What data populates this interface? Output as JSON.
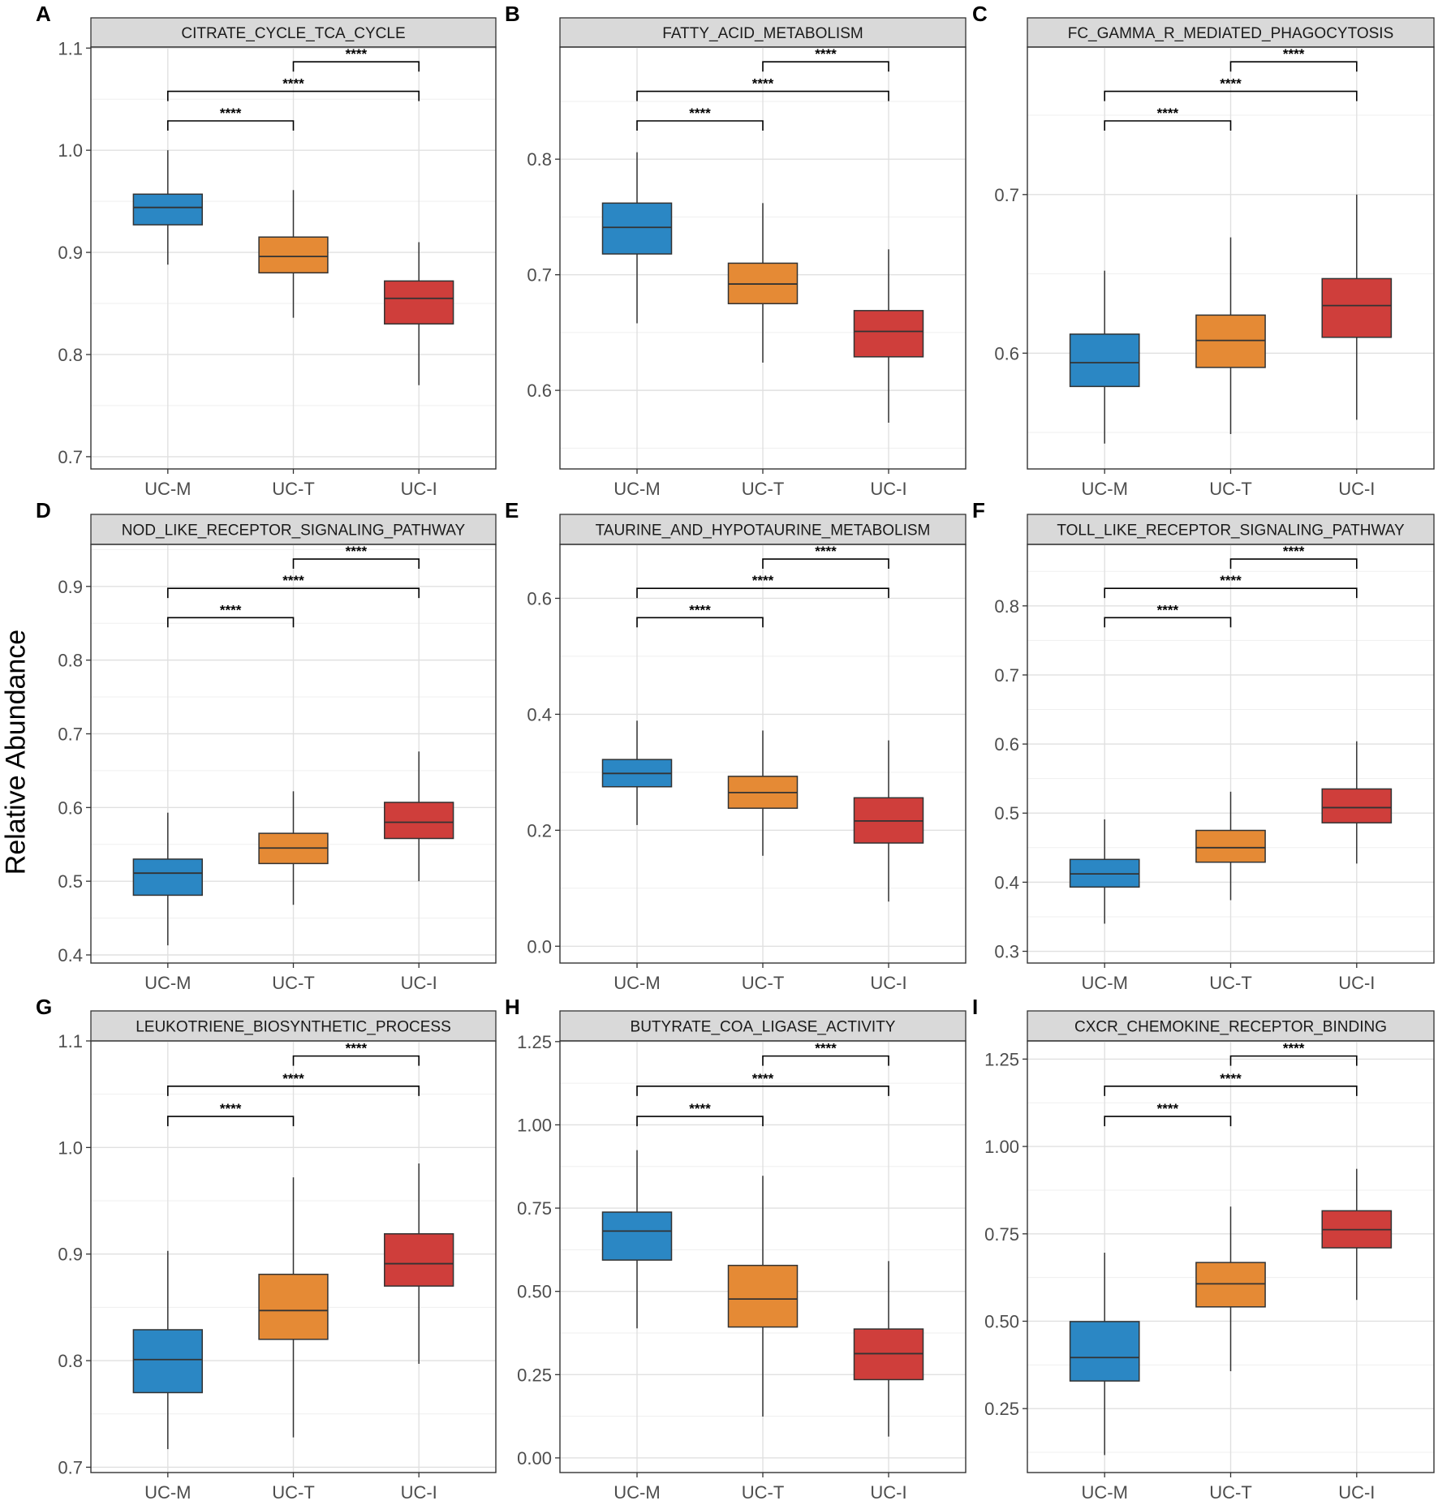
{
  "figure": {
    "y_axis_label": "Relative Abundance",
    "groups": [
      "UC-M",
      "UC-T",
      "UC-I"
    ],
    "group_colors": {
      "UC-M": "#2b87c4",
      "UC-T": "#e58a35",
      "UC-I": "#cf3e3b"
    },
    "significance_label": "****"
  },
  "chart_data": [
    {
      "letter": "A",
      "type": "box",
      "title": "CITRATE_CYCLE_TCA_CYCLE",
      "categories": [
        "UC-M",
        "UC-T",
        "UC-I"
      ],
      "ylim": [
        0.688,
        1.101
      ],
      "yticks": [
        0.7,
        0.8,
        0.9,
        1.0,
        1.1
      ],
      "tick_decimals": 1,
      "boxes": [
        {
          "group": "UC-M",
          "min": 0.888,
          "q1": 0.927,
          "median": 0.944,
          "q3": 0.957,
          "max": 1.0
        },
        {
          "group": "UC-T",
          "min": 0.836,
          "q1": 0.88,
          "median": 0.896,
          "q3": 0.915,
          "max": 0.961
        },
        {
          "group": "UC-I",
          "min": 0.77,
          "q1": 0.83,
          "median": 0.855,
          "q3": 0.872,
          "max": 0.91
        }
      ],
      "comparisons": [
        {
          "from": "UC-T",
          "to": "UC-I",
          "label": "****"
        },
        {
          "from": "UC-M",
          "to": "UC-I",
          "label": "****"
        },
        {
          "from": "UC-M",
          "to": "UC-T",
          "label": "****"
        }
      ]
    },
    {
      "letter": "B",
      "type": "box",
      "title": "FATTY_ACID_METABOLISM",
      "categories": [
        "UC-M",
        "UC-T",
        "UC-I"
      ],
      "ylim": [
        0.532,
        0.897
      ],
      "yticks": [
        0.6,
        0.7,
        0.8
      ],
      "tick_decimals": 1,
      "boxes": [
        {
          "group": "UC-M",
          "min": 0.658,
          "q1": 0.718,
          "median": 0.741,
          "q3": 0.762,
          "max": 0.806
        },
        {
          "group": "UC-T",
          "min": 0.624,
          "q1": 0.675,
          "median": 0.692,
          "q3": 0.71,
          "max": 0.762
        },
        {
          "group": "UC-I",
          "min": 0.572,
          "q1": 0.629,
          "median": 0.651,
          "q3": 0.669,
          "max": 0.722
        }
      ],
      "comparisons": [
        {
          "from": "UC-T",
          "to": "UC-I",
          "label": "****"
        },
        {
          "from": "UC-M",
          "to": "UC-I",
          "label": "****"
        },
        {
          "from": "UC-M",
          "to": "UC-T",
          "label": "****"
        }
      ]
    },
    {
      "letter": "C",
      "type": "box",
      "title": "FC_GAMMA_R_MEDIATED_PHAGOCYTOSIS",
      "categories": [
        "UC-M",
        "UC-T",
        "UC-I"
      ],
      "ylim": [
        0.527,
        0.793
      ],
      "yticks": [
        0.6,
        0.7
      ],
      "tick_decimals": 1,
      "boxes": [
        {
          "group": "UC-M",
          "min": 0.543,
          "q1": 0.579,
          "median": 0.594,
          "q3": 0.612,
          "max": 0.652
        },
        {
          "group": "UC-T",
          "min": 0.549,
          "q1": 0.591,
          "median": 0.608,
          "q3": 0.624,
          "max": 0.673
        },
        {
          "group": "UC-I",
          "min": 0.558,
          "q1": 0.61,
          "median": 0.63,
          "q3": 0.647,
          "max": 0.7
        }
      ],
      "comparisons": [
        {
          "from": "UC-T",
          "to": "UC-I",
          "label": "****"
        },
        {
          "from": "UC-M",
          "to": "UC-I",
          "label": "****"
        },
        {
          "from": "UC-M",
          "to": "UC-T",
          "label": "****"
        }
      ]
    },
    {
      "letter": "D",
      "type": "box",
      "title": "NOD_LIKE_RECEPTOR_SIGNALING_PATHWAY",
      "categories": [
        "UC-M",
        "UC-T",
        "UC-I"
      ],
      "ylim": [
        0.389,
        0.957
      ],
      "yticks": [
        0.4,
        0.5,
        0.6,
        0.7,
        0.8,
        0.9
      ],
      "tick_decimals": 1,
      "boxes": [
        {
          "group": "UC-M",
          "min": 0.413,
          "q1": 0.481,
          "median": 0.511,
          "q3": 0.53,
          "max": 0.593
        },
        {
          "group": "UC-T",
          "min": 0.468,
          "q1": 0.524,
          "median": 0.545,
          "q3": 0.565,
          "max": 0.622
        },
        {
          "group": "UC-I",
          "min": 0.5,
          "q1": 0.558,
          "median": 0.58,
          "q3": 0.607,
          "max": 0.676
        }
      ],
      "comparisons": [
        {
          "from": "UC-T",
          "to": "UC-I",
          "label": "****"
        },
        {
          "from": "UC-M",
          "to": "UC-I",
          "label": "****"
        },
        {
          "from": "UC-M",
          "to": "UC-T",
          "label": "****"
        }
      ]
    },
    {
      "letter": "E",
      "type": "box",
      "title": "TAURINE_AND_HYPOTAURINE_METABOLISM",
      "categories": [
        "UC-M",
        "UC-T",
        "UC-I"
      ],
      "ylim": [
        -0.029,
        0.693
      ],
      "yticks": [
        0.0,
        0.2,
        0.4,
        0.6
      ],
      "tick_decimals": 1,
      "boxes": [
        {
          "group": "UC-M",
          "min": 0.209,
          "q1": 0.275,
          "median": 0.298,
          "q3": 0.322,
          "max": 0.389
        },
        {
          "group": "UC-T",
          "min": 0.156,
          "q1": 0.238,
          "median": 0.265,
          "q3": 0.293,
          "max": 0.372
        },
        {
          "group": "UC-I",
          "min": 0.077,
          "q1": 0.178,
          "median": 0.216,
          "q3": 0.256,
          "max": 0.355
        }
      ],
      "comparisons": [
        {
          "from": "UC-T",
          "to": "UC-I",
          "label": "****"
        },
        {
          "from": "UC-M",
          "to": "UC-I",
          "label": "****"
        },
        {
          "from": "UC-M",
          "to": "UC-T",
          "label": "****"
        }
      ]
    },
    {
      "letter": "F",
      "type": "box",
      "title": "TOLL_LIKE_RECEPTOR_SIGNALING_PATHWAY",
      "categories": [
        "UC-M",
        "UC-T",
        "UC-I"
      ],
      "ylim": [
        0.283,
        0.889
      ],
      "yticks": [
        0.3,
        0.4,
        0.5,
        0.6,
        0.7,
        0.8
      ],
      "tick_decimals": 1,
      "boxes": [
        {
          "group": "UC-M",
          "min": 0.34,
          "q1": 0.393,
          "median": 0.412,
          "q3": 0.433,
          "max": 0.491
        },
        {
          "group": "UC-T",
          "min": 0.374,
          "q1": 0.429,
          "median": 0.45,
          "q3": 0.475,
          "max": 0.531
        },
        {
          "group": "UC-I",
          "min": 0.427,
          "q1": 0.486,
          "median": 0.508,
          "q3": 0.535,
          "max": 0.604
        }
      ],
      "comparisons": [
        {
          "from": "UC-T",
          "to": "UC-I",
          "label": "****"
        },
        {
          "from": "UC-M",
          "to": "UC-I",
          "label": "****"
        },
        {
          "from": "UC-M",
          "to": "UC-T",
          "label": "****"
        }
      ]
    },
    {
      "letter": "G",
      "type": "box",
      "title": "LEUKOTRIENE_BIOSYNTHETIC_PROCESS",
      "categories": [
        "UC-M",
        "UC-T",
        "UC-I"
      ],
      "ylim": [
        0.695,
        1.1
      ],
      "yticks": [
        0.7,
        0.8,
        0.9,
        1.0,
        1.1
      ],
      "tick_decimals": 1,
      "boxes": [
        {
          "group": "UC-M",
          "min": 0.717,
          "q1": 0.77,
          "median": 0.801,
          "q3": 0.829,
          "max": 0.903
        },
        {
          "group": "UC-T",
          "min": 0.728,
          "q1": 0.82,
          "median": 0.847,
          "q3": 0.881,
          "max": 0.972
        },
        {
          "group": "UC-I",
          "min": 0.797,
          "q1": 0.87,
          "median": 0.891,
          "q3": 0.919,
          "max": 0.985
        }
      ],
      "comparisons": [
        {
          "from": "UC-T",
          "to": "UC-I",
          "label": "****"
        },
        {
          "from": "UC-M",
          "to": "UC-I",
          "label": "****"
        },
        {
          "from": "UC-M",
          "to": "UC-T",
          "label": "****"
        }
      ]
    },
    {
      "letter": "H",
      "type": "box",
      "title": "BUTYRATE_COA_LIGASE_ACTIVITY",
      "categories": [
        "UC-M",
        "UC-T",
        "UC-I"
      ],
      "ylim": [
        -0.044,
        1.252
      ],
      "yticks": [
        0.0,
        0.25,
        0.5,
        0.75,
        1.0,
        1.25
      ],
      "tick_decimals": 2,
      "boxes": [
        {
          "group": "UC-M",
          "min": 0.389,
          "q1": 0.594,
          "median": 0.681,
          "q3": 0.738,
          "max": 0.924
        },
        {
          "group": "UC-T",
          "min": 0.124,
          "q1": 0.393,
          "median": 0.477,
          "q3": 0.578,
          "max": 0.847
        },
        {
          "group": "UC-I",
          "min": 0.064,
          "q1": 0.235,
          "median": 0.313,
          "q3": 0.387,
          "max": 0.591
        }
      ],
      "comparisons": [
        {
          "from": "UC-T",
          "to": "UC-I",
          "label": "****"
        },
        {
          "from": "UC-M",
          "to": "UC-I",
          "label": "****"
        },
        {
          "from": "UC-M",
          "to": "UC-T",
          "label": "****"
        }
      ]
    },
    {
      "letter": "I",
      "type": "box",
      "title": "CXCR_CHEMOKINE_RECEPTOR_BINDING",
      "categories": [
        "UC-M",
        "UC-T",
        "UC-I"
      ],
      "ylim": [
        0.067,
        1.302
      ],
      "yticks": [
        0.25,
        0.5,
        0.75,
        1.0,
        1.25
      ],
      "tick_decimals": 2,
      "boxes": [
        {
          "group": "UC-M",
          "min": 0.117,
          "q1": 0.329,
          "median": 0.396,
          "q3": 0.499,
          "max": 0.696
        },
        {
          "group": "UC-T",
          "min": 0.357,
          "q1": 0.541,
          "median": 0.607,
          "q3": 0.668,
          "max": 0.828
        },
        {
          "group": "UC-I",
          "min": 0.561,
          "q1": 0.71,
          "median": 0.762,
          "q3": 0.816,
          "max": 0.936
        }
      ],
      "comparisons": [
        {
          "from": "UC-T",
          "to": "UC-I",
          "label": "****"
        },
        {
          "from": "UC-M",
          "to": "UC-I",
          "label": "****"
        },
        {
          "from": "UC-M",
          "to": "UC-T",
          "label": "****"
        }
      ]
    }
  ]
}
